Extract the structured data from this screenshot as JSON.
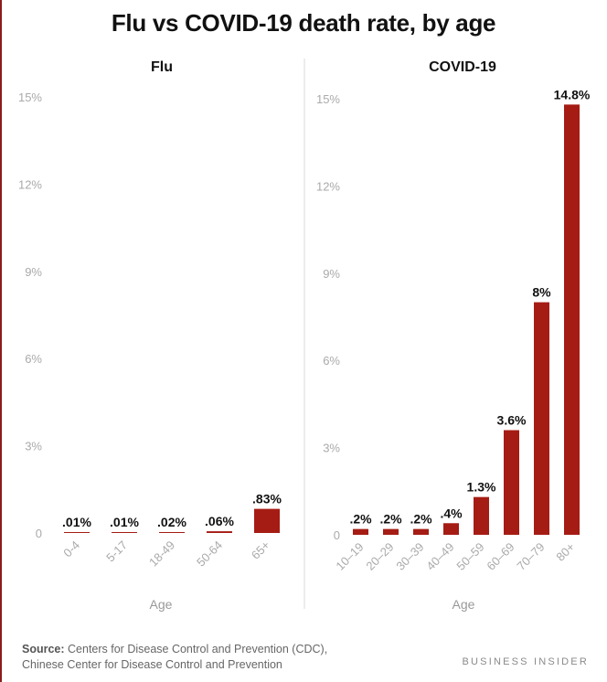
{
  "title": "Flu vs COVID-19 death rate, by age",
  "colors": {
    "bar": "#a51c14",
    "tick_text": "#aaaaaa",
    "label_text": "#111111",
    "axis": "#cccccc"
  },
  "chart_data": [
    {
      "type": "bar",
      "title": "Flu",
      "xlabel": "Age",
      "ylabel": "",
      "ylim": [
        0,
        15
      ],
      "yticks": [
        0,
        3,
        6,
        9,
        12,
        15
      ],
      "ytick_labels": [
        "0",
        "3%",
        "6%",
        "9%",
        "12%",
        "15%"
      ],
      "categories": [
        "0-4",
        "5-17",
        "18-49",
        "50-64",
        "65+"
      ],
      "values": [
        0.01,
        0.01,
        0.02,
        0.06,
        0.83
      ],
      "data_labels": [
        ".01%",
        ".01%",
        ".02%",
        ".06%",
        ".83%"
      ]
    },
    {
      "type": "bar",
      "title": "COVID-19",
      "xlabel": "Age",
      "ylabel": "",
      "ylim": [
        0,
        15
      ],
      "yticks": [
        0,
        3,
        6,
        9,
        12,
        15
      ],
      "ytick_labels": [
        "0",
        "3%",
        "6%",
        "9%",
        "12%",
        "15%"
      ],
      "categories": [
        "10–19",
        "20–29",
        "30–39",
        "40–49",
        "50–59",
        "60–69",
        "70–79",
        "80+"
      ],
      "values": [
        0.2,
        0.2,
        0.2,
        0.4,
        1.3,
        3.6,
        8,
        14.8
      ],
      "data_labels": [
        ".2%",
        ".2%",
        ".2%",
        ".4%",
        "1.3%",
        "3.6%",
        "8%",
        "14.8%"
      ]
    }
  ],
  "footer": {
    "source_label": "Source:",
    "source_line1": " Centers for Disease Control and Prevention (CDC),",
    "source_line2": "Chinese Center for Disease Control and Prevention",
    "brand": "BUSINESS INSIDER"
  }
}
